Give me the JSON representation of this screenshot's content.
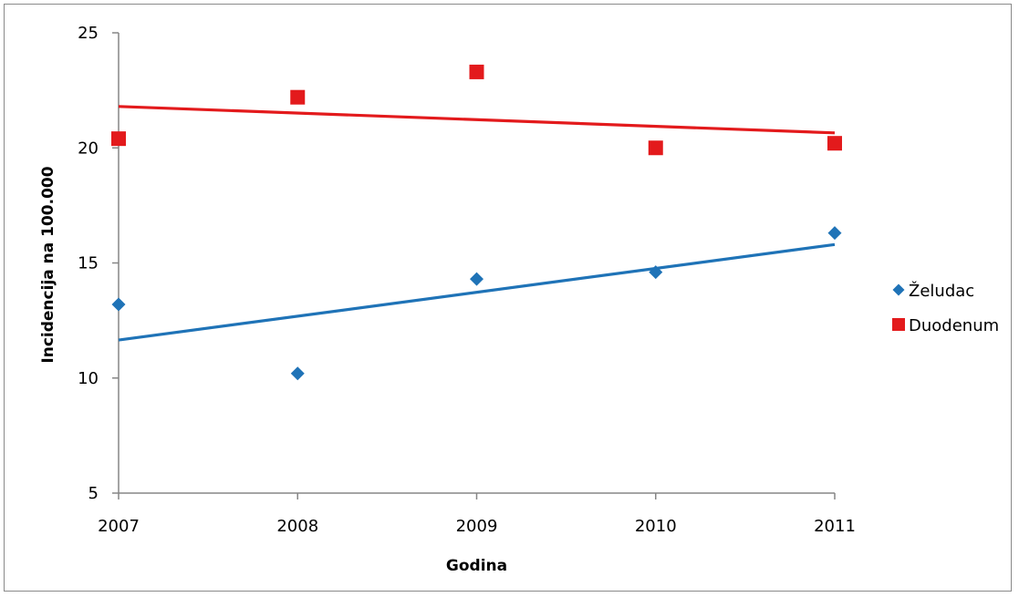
{
  "chart_data": {
    "type": "scatter",
    "xlabel": "Godina",
    "ylabel": "Incidencija na 100.000",
    "x": [
      2007,
      2008,
      2009,
      2010,
      2011
    ],
    "x_tick_labels": [
      "2007",
      "2008",
      "2009",
      "2010",
      "2011"
    ],
    "y_ticks": [
      5,
      10,
      15,
      20,
      25
    ],
    "y_tick_labels": [
      "5",
      "10",
      "15",
      "20",
      "25"
    ],
    "ylim": [
      5,
      25
    ],
    "xlim": [
      2007,
      2011
    ],
    "grid": false,
    "legend_position": "right",
    "series": [
      {
        "name": "Želudac",
        "marker": "diamond",
        "color": "#1f73b7",
        "values": [
          13.2,
          10.2,
          14.3,
          14.6,
          16.3
        ],
        "trendline": [
          11.65,
          15.8
        ]
      },
      {
        "name": "Duodenum",
        "marker": "square",
        "color": "#e31a1c",
        "values": [
          20.4,
          22.2,
          23.3,
          20.0,
          20.2
        ],
        "trendline": [
          21.8,
          20.65
        ]
      }
    ]
  }
}
